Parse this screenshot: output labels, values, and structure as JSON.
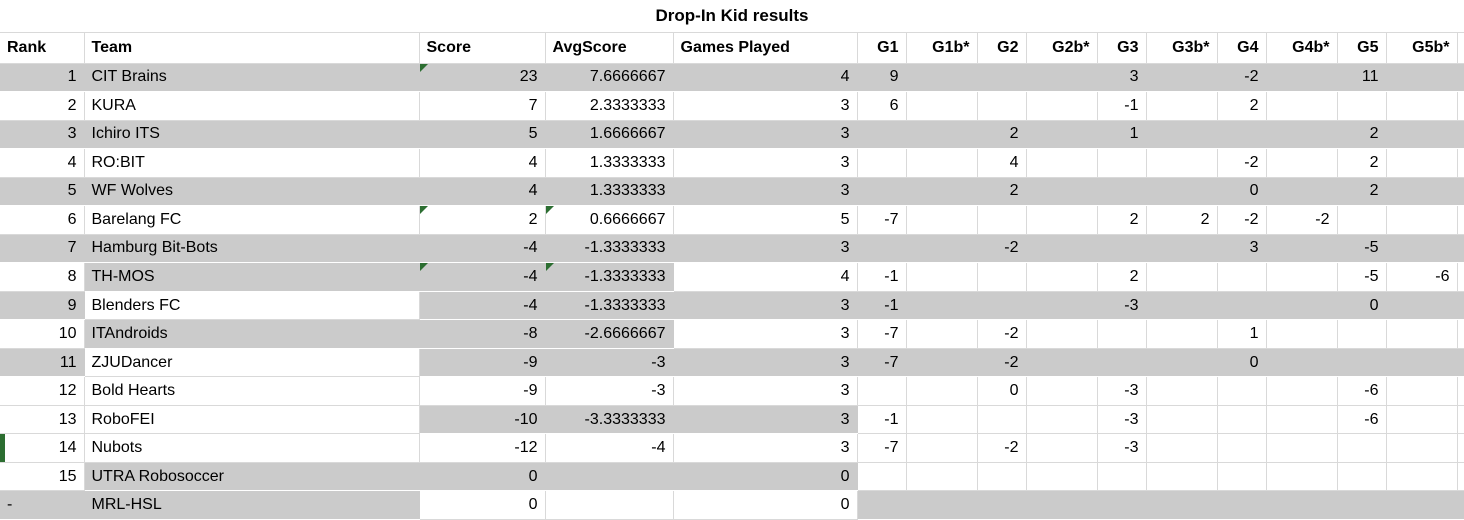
{
  "title": "Drop-In Kid results",
  "columns": [
    "Rank",
    "Team",
    "Score",
    "AvgScore",
    "Games Played",
    "G1",
    "G1b*",
    "G2",
    "G2b*",
    "G3",
    "G3b*",
    "G4",
    "G4b*",
    "G5",
    "G5b*"
  ],
  "colors": {
    "band_gray": "#cbcbcb",
    "gridline": "#d9d9d9",
    "note_green": "#2c6e31",
    "text": "#000000",
    "background": "#ffffff"
  },
  "icons": {
    "cell_note": "green-corner-triangle",
    "row_marker": "green-left-bar"
  },
  "rows": [
    {
      "rank": "1",
      "team": "CIT Brains",
      "score": "23",
      "avg": "7.6666667",
      "games": "4",
      "g": [
        "9",
        "",
        "",
        "",
        "3",
        "",
        "-2",
        "",
        "11",
        ""
      ],
      "fills": "gggggg",
      "notes": [
        "score"
      ],
      "left_bar": false
    },
    {
      "rank": "2",
      "team": "KURA",
      "score": "7",
      "avg": "2.3333333",
      "games": "3",
      "g": [
        "6",
        "",
        "",
        "",
        "-1",
        "",
        "2",
        "",
        "",
        ""
      ],
      "fills": "wwwwww",
      "notes": [],
      "left_bar": false
    },
    {
      "rank": "3",
      "team": "Ichiro ITS",
      "score": "5",
      "avg": "1.6666667",
      "games": "3",
      "g": [
        "",
        "",
        "2",
        "",
        "1",
        "",
        "",
        "",
        "2",
        ""
      ],
      "fills": "gggggg",
      "notes": [],
      "left_bar": false
    },
    {
      "rank": "4",
      "team": "RO:BIT",
      "score": "4",
      "avg": "1.3333333",
      "games": "3",
      "g": [
        "",
        "",
        "4",
        "",
        "",
        "",
        "-2",
        "",
        "2",
        ""
      ],
      "fills": "wwwwww",
      "notes": [],
      "left_bar": false
    },
    {
      "rank": "5",
      "team": "WF Wolves",
      "score": "4",
      "avg": "1.3333333",
      "games": "3",
      "g": [
        "",
        "",
        "2",
        "",
        "",
        "",
        "0",
        "",
        "2",
        ""
      ],
      "fills": "gggggg",
      "notes": [],
      "left_bar": false
    },
    {
      "rank": "6",
      "team": "Barelang FC",
      "score": "2",
      "avg": "0.6666667",
      "games": "5",
      "g": [
        "-7",
        "",
        "",
        "",
        "2",
        "2",
        "-2",
        "-2",
        "",
        ""
      ],
      "fills": "wwwwww",
      "notes": [
        "score",
        "avg"
      ],
      "left_bar": false
    },
    {
      "rank": "7",
      "team": "Hamburg Bit-Bots",
      "score": "-4",
      "avg": "-1.3333333",
      "games": "3",
      "g": [
        "",
        "",
        "-2",
        "",
        "",
        "",
        "3",
        "",
        "-5",
        ""
      ],
      "fills": "gggggg",
      "notes": [],
      "left_bar": false
    },
    {
      "rank": "8",
      "team": "TH-MOS",
      "score": "-4",
      "avg": "-1.3333333",
      "games": "4",
      "g": [
        "-1",
        "",
        "",
        "",
        "2",
        "",
        "",
        "",
        "-5",
        "-6"
      ],
      "fills": "wgggww",
      "notes": [
        "score",
        "avg"
      ],
      "left_bar": false
    },
    {
      "rank": "9",
      "team": "Blenders FC",
      "score": "-4",
      "avg": "-1.3333333",
      "games": "3",
      "g": [
        "-1",
        "",
        "",
        "",
        "-3",
        "",
        "",
        "",
        "0",
        ""
      ],
      "fills": "gwgggg",
      "notes": [],
      "left_bar": false
    },
    {
      "rank": "10",
      "team": "ITAndroids",
      "score": "-8",
      "avg": "-2.6666667",
      "games": "3",
      "g": [
        "-7",
        "",
        "-2",
        "",
        "",
        "",
        "1",
        "",
        "",
        ""
      ],
      "fills": "wgggww",
      "notes": [],
      "left_bar": false
    },
    {
      "rank": "11",
      "team": "ZJUDancer",
      "score": "-9",
      "avg": "-3",
      "games": "3",
      "g": [
        "-7",
        "",
        "-2",
        "",
        "",
        "",
        "0",
        "",
        "",
        ""
      ],
      "fills": "gwgggg",
      "notes": [],
      "left_bar": false
    },
    {
      "rank": "12",
      "team": "Bold Hearts",
      "score": "-9",
      "avg": "-3",
      "games": "3",
      "g": [
        "",
        "",
        "0",
        "",
        "-3",
        "",
        "",
        "",
        "-6",
        ""
      ],
      "fills": "wwwwww",
      "notes": [],
      "left_bar": false
    },
    {
      "rank": "13",
      "team": "RoboFEI",
      "score": "-10",
      "avg": "-3.3333333",
      "games": "3",
      "g": [
        "-1",
        "",
        "",
        "",
        "-3",
        "",
        "",
        "",
        "-6",
        ""
      ],
      "fills": "wwgggw",
      "notes": [],
      "left_bar": false
    },
    {
      "rank": "14",
      "team": "Nubots",
      "score": "-12",
      "avg": "-4",
      "games": "3",
      "g": [
        "-7",
        "",
        "-2",
        "",
        "-3",
        "",
        "",
        "",
        "",
        ""
      ],
      "fills": "wwwwww",
      "notes": [],
      "left_bar": true
    },
    {
      "rank": "15",
      "team": "UTRA Robosoccer",
      "score": "0",
      "avg": "",
      "games": "0",
      "g": [
        "",
        "",
        "",
        "",
        "",
        "",
        "",
        "",
        "",
        ""
      ],
      "fills": "wggggw",
      "notes": [],
      "left_bar": false
    },
    {
      "rank": "-",
      "team": "MRL-HSL",
      "score": "0",
      "avg": "",
      "games": "0",
      "g": [
        "",
        "",
        "",
        "",
        "",
        "",
        "",
        "",
        "",
        ""
      ],
      "fills": "ggwwwg",
      "notes": [],
      "left_bar": false
    }
  ]
}
